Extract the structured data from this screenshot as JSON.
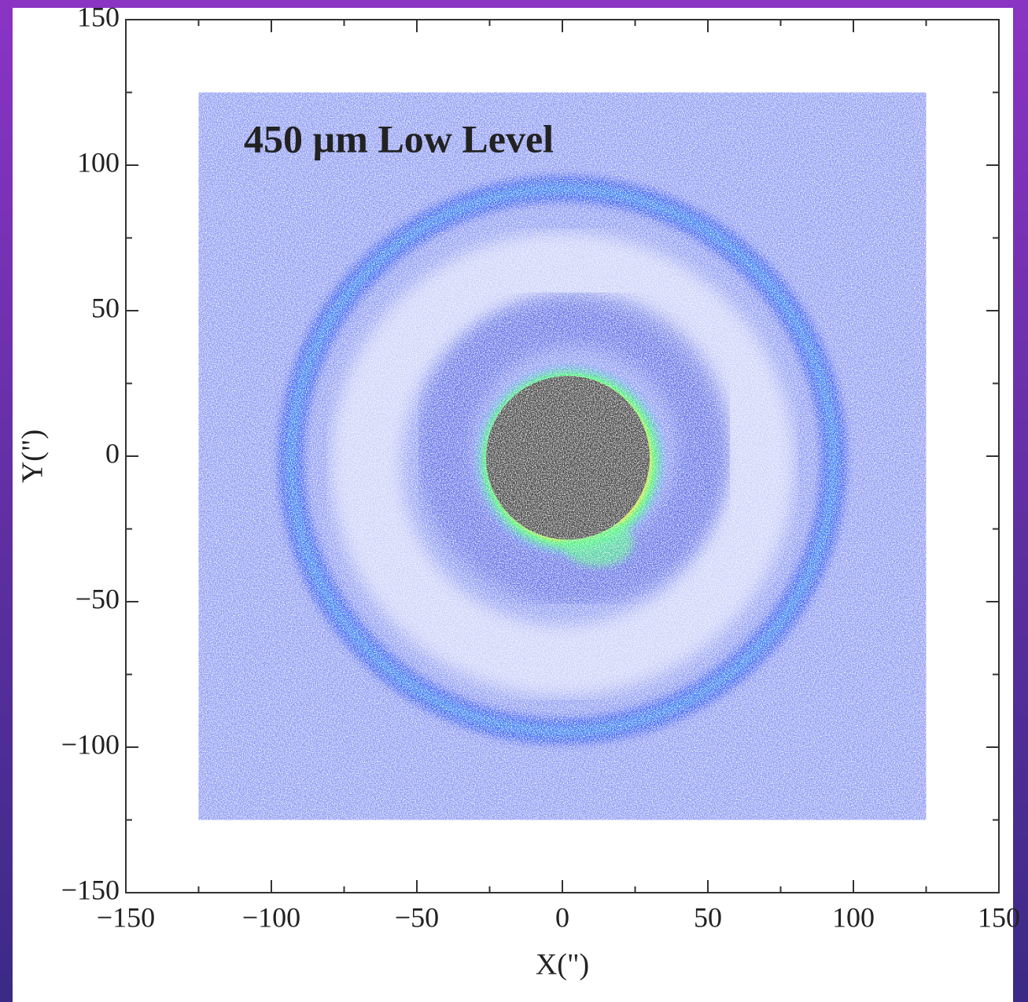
{
  "chart_data": {
    "type": "image",
    "title": "450 µm Low Level",
    "xlabel": "X(\")",
    "ylabel": "Y(\")",
    "extent": [
      -125,
      125,
      -125,
      125
    ],
    "xlim": [
      -150,
      150
    ],
    "ylim": [
      -150,
      150
    ],
    "xticks": [
      {
        "value": -150,
        "label": "−150"
      },
      {
        "value": -100,
        "label": "−100"
      },
      {
        "value": -50,
        "label": "−50"
      },
      0,
      50,
      100,
      150
    ],
    "yticks": [
      {
        "value": -150,
        "label": "−150"
      },
      {
        "value": -100,
        "label": "−100"
      },
      {
        "value": -50,
        "label": "−50"
      },
      0,
      50,
      100,
      150
    ],
    "xminorticks": [
      -125,
      -75,
      -25,
      25,
      75,
      125
    ],
    "yminorticks": [
      -125,
      -75,
      -25,
      25,
      75,
      125
    ]
  }
}
